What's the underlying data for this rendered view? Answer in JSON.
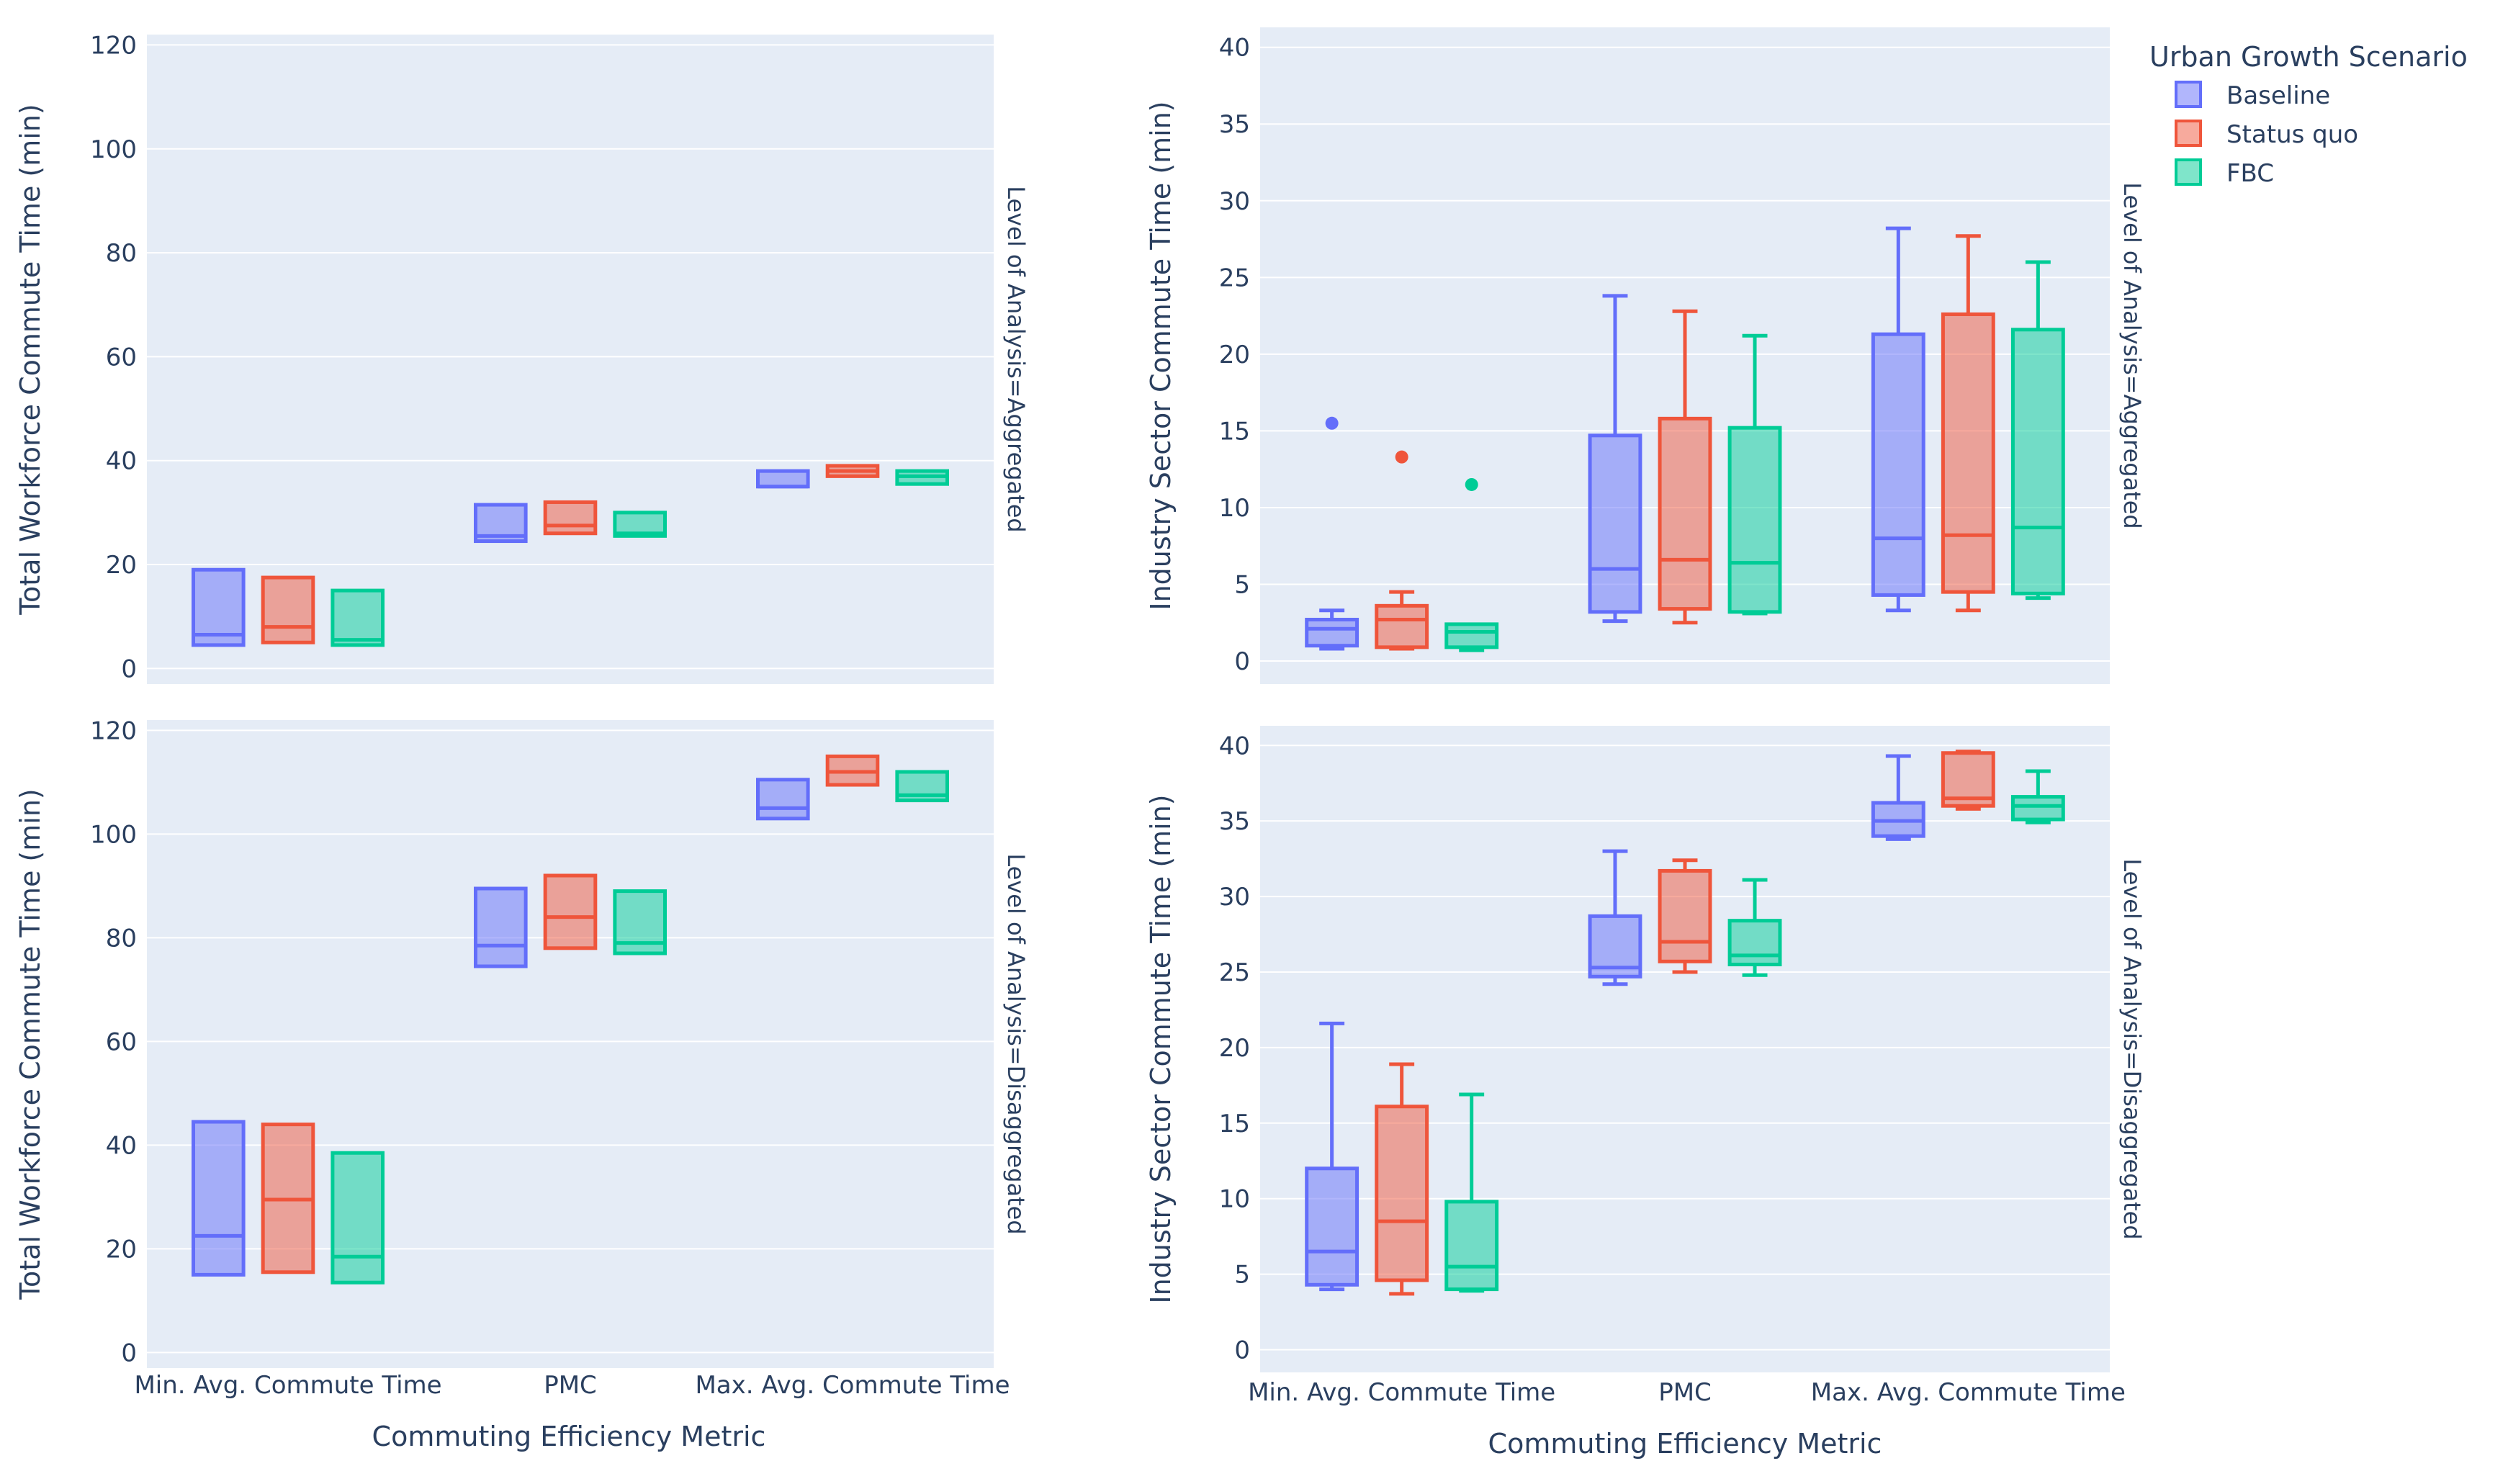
{
  "colors": {
    "Baseline": "#636efa",
    "Status quo": "#ef553b",
    "FBC": "#00cc96",
    "plot_bg": "#e5ecf6",
    "grid": "#ffffff",
    "text": "#2a3f5f"
  },
  "legend": {
    "title": "Urban Growth Scenario",
    "items": [
      "Baseline",
      "Status quo",
      "FBC"
    ]
  },
  "x_title": "Commuting Efficiency Metric",
  "chart_data": [
    {
      "type": "box",
      "id": "tl",
      "title": "",
      "ylabel": "Total Workforce Commute Time (min)",
      "facet": "Level of Analysis=Aggregated",
      "ylim": [
        -3,
        122
      ],
      "yticks": [
        0,
        20,
        40,
        60,
        80,
        100,
        120
      ],
      "categories": [
        "Min. Avg. Commute Time",
        "PMC",
        "Max. Avg. Commute Time"
      ],
      "show_x_labels": false,
      "series": [
        {
          "name": "Baseline",
          "boxes": [
            {
              "q1": 4.5,
              "median": 6.5,
              "q3": 19,
              "low": 4.5,
              "high": 19,
              "outliers": []
            },
            {
              "q1": 24.5,
              "median": 25.5,
              "q3": 31.5,
              "low": 24.5,
              "high": 31.5,
              "outliers": []
            },
            {
              "q1": 35,
              "median": 35,
              "q3": 38,
              "low": 35,
              "high": 38,
              "outliers": []
            }
          ]
        },
        {
          "name": "Status quo",
          "boxes": [
            {
              "q1": 5,
              "median": 8,
              "q3": 17.5,
              "low": 5,
              "high": 17.5,
              "outliers": []
            },
            {
              "q1": 26,
              "median": 27.5,
              "q3": 32,
              "low": 26,
              "high": 32,
              "outliers": []
            },
            {
              "q1": 37,
              "median": 38,
              "q3": 39,
              "low": 37,
              "high": 39,
              "outliers": []
            }
          ]
        },
        {
          "name": "FBC",
          "boxes": [
            {
              "q1": 4.5,
              "median": 5.5,
              "q3": 15,
              "low": 4.5,
              "high": 15,
              "outliers": []
            },
            {
              "q1": 25.5,
              "median": 26,
              "q3": 30,
              "low": 25.5,
              "high": 30,
              "outliers": []
            },
            {
              "q1": 35.5,
              "median": 37,
              "q3": 38,
              "low": 35.5,
              "high": 38,
              "outliers": []
            }
          ]
        }
      ]
    },
    {
      "type": "box",
      "id": "tr",
      "title": "",
      "ylabel": "Industry Sector Commute Time (min)",
      "facet": "Level of Analysis=Aggregated",
      "ylim": [
        -1.5,
        41.3
      ],
      "yticks": [
        0,
        5,
        10,
        15,
        20,
        25,
        30,
        35,
        40
      ],
      "categories": [
        "Min. Avg. Commute Time",
        "PMC",
        "Max. Avg. Commute Time"
      ],
      "show_x_labels": false,
      "series": [
        {
          "name": "Baseline",
          "boxes": [
            {
              "q1": 1,
              "median": 2.1,
              "q3": 2.7,
              "low": 0.8,
              "high": 3.3,
              "outliers": [
                15.5
              ]
            },
            {
              "q1": 3.2,
              "median": 6,
              "q3": 14.7,
              "low": 2.6,
              "high": 23.8,
              "outliers": []
            },
            {
              "q1": 4.3,
              "median": 8,
              "q3": 21.3,
              "low": 3.3,
              "high": 28.2,
              "outliers": []
            }
          ]
        },
        {
          "name": "Status quo",
          "boxes": [
            {
              "q1": 0.9,
              "median": 2.7,
              "q3": 3.6,
              "low": 0.8,
              "high": 4.5,
              "outliers": [
                13.3
              ]
            },
            {
              "q1": 3.4,
              "median": 6.6,
              "q3": 15.8,
              "low": 2.5,
              "high": 22.8,
              "outliers": []
            },
            {
              "q1": 4.5,
              "median": 8.2,
              "q3": 22.6,
              "low": 3.3,
              "high": 27.7,
              "outliers": []
            }
          ]
        },
        {
          "name": "FBC",
          "boxes": [
            {
              "q1": 0.9,
              "median": 1.9,
              "q3": 2.4,
              "low": 0.7,
              "high": 2.4,
              "outliers": [
                11.5
              ]
            },
            {
              "q1": 3.2,
              "median": 6.4,
              "q3": 15.2,
              "low": 3.1,
              "high": 21.2,
              "outliers": []
            },
            {
              "q1": 4.4,
              "median": 8.7,
              "q3": 21.6,
              "low": 4.1,
              "high": 26
            }
          ]
        }
      ]
    },
    {
      "type": "box",
      "id": "bl",
      "title": "",
      "ylabel": "Total Workforce Commute Time (min)",
      "facet": "Level of Analysis=Disaggregated",
      "ylim": [
        -3,
        122
      ],
      "yticks": [
        0,
        20,
        40,
        60,
        80,
        100,
        120
      ],
      "categories": [
        "Min. Avg. Commute Time",
        "PMC",
        "Max. Avg. Commute Time"
      ],
      "show_x_labels": true,
      "series": [
        {
          "name": "Baseline",
          "boxes": [
            {
              "q1": 15,
              "median": 22.5,
              "q3": 44.5,
              "low": 15,
              "high": 44.5,
              "outliers": []
            },
            {
              "q1": 74.5,
              "median": 78.5,
              "q3": 89.5,
              "low": 74.5,
              "high": 89.5,
              "outliers": []
            },
            {
              "q1": 103,
              "median": 105,
              "q3": 110.5,
              "low": 103,
              "high": 110.5,
              "outliers": []
            }
          ]
        },
        {
          "name": "Status quo",
          "boxes": [
            {
              "q1": 15.5,
              "median": 29.5,
              "q3": 44,
              "low": 15.5,
              "high": 44,
              "outliers": []
            },
            {
              "q1": 78,
              "median": 84,
              "q3": 92,
              "low": 78,
              "high": 92,
              "outliers": []
            },
            {
              "q1": 109.5,
              "median": 112,
              "q3": 115,
              "low": 109.5,
              "high": 115,
              "outliers": []
            }
          ]
        },
        {
          "name": "FBC",
          "boxes": [
            {
              "q1": 13.5,
              "median": 18.5,
              "q3": 38.5,
              "low": 13.5,
              "high": 38.5,
              "outliers": []
            },
            {
              "q1": 77,
              "median": 79,
              "q3": 89,
              "low": 77,
              "high": 89,
              "outliers": []
            },
            {
              "q1": 106.5,
              "median": 107.5,
              "q3": 112,
              "low": 106.5,
              "high": 112,
              "outliers": []
            }
          ]
        }
      ]
    },
    {
      "type": "box",
      "id": "br",
      "title": "",
      "ylabel": "Industry Sector Commute Time (min)",
      "facet": "Level of Analysis=Disaggregated",
      "ylim": [
        -1.5,
        41.3
      ],
      "yticks": [
        0,
        5,
        10,
        15,
        20,
        25,
        30,
        35,
        40
      ],
      "categories": [
        "Min. Avg. Commute Time",
        "PMC",
        "Max. Avg. Commute Time"
      ],
      "show_x_labels": true,
      "series": [
        {
          "name": "Baseline",
          "boxes": [
            {
              "q1": 4.3,
              "median": 6.5,
              "q3": 12,
              "low": 4,
              "high": 21.6,
              "outliers": []
            },
            {
              "q1": 24.7,
              "median": 25.3,
              "q3": 28.7,
              "low": 24.2,
              "high": 33,
              "outliers": []
            },
            {
              "q1": 34,
              "median": 35,
              "q3": 36.2,
              "low": 33.8,
              "high": 39.3,
              "outliers": []
            }
          ]
        },
        {
          "name": "Status quo",
          "boxes": [
            {
              "q1": 4.6,
              "median": 8.5,
              "q3": 16.1,
              "low": 3.7,
              "high": 18.9,
              "outliers": []
            },
            {
              "q1": 25.7,
              "median": 27,
              "q3": 31.7,
              "low": 25,
              "high": 32.4,
              "outliers": []
            },
            {
              "q1": 36,
              "median": 36.5,
              "q3": 39.5,
              "low": 35.8,
              "high": 39.6,
              "outliers": []
            }
          ]
        },
        {
          "name": "FBC",
          "boxes": [
            {
              "q1": 4,
              "median": 5.5,
              "q3": 9.8,
              "low": 3.9,
              "high": 16.9,
              "outliers": []
            },
            {
              "q1": 25.5,
              "median": 26.1,
              "q3": 28.4,
              "low": 24.8,
              "high": 31.1,
              "outliers": []
            },
            {
              "q1": 35.1,
              "median": 36,
              "q3": 36.6,
              "low": 34.9,
              "high": 38.3,
              "outliers": []
            }
          ]
        }
      ]
    }
  ]
}
